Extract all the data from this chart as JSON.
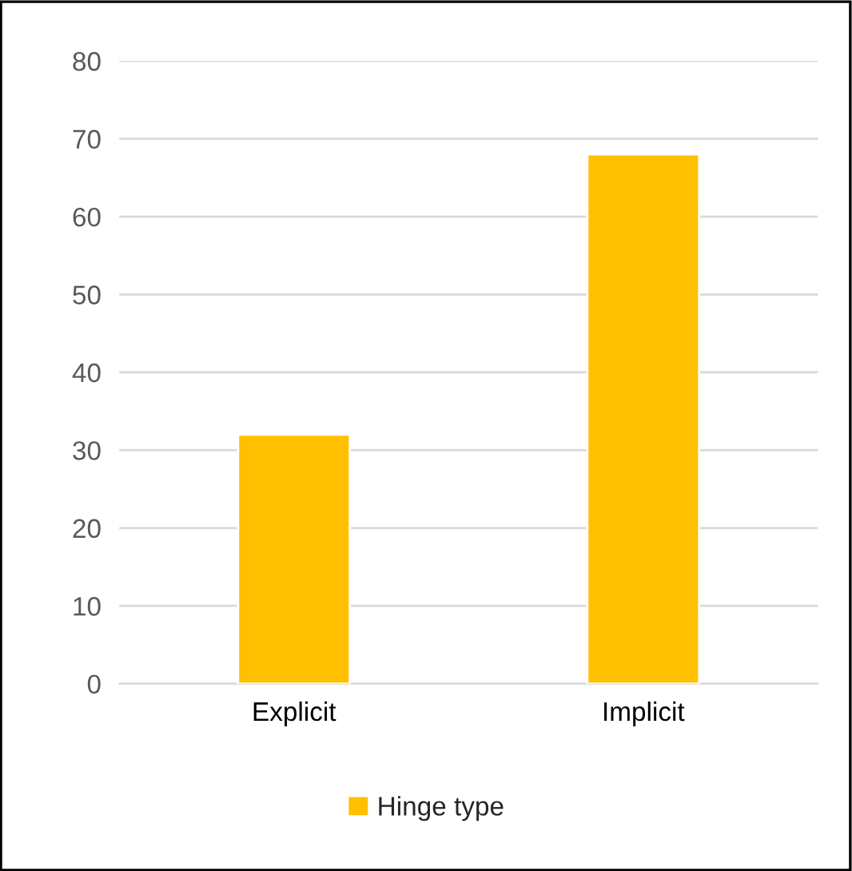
{
  "chart_data": {
    "type": "bar",
    "categories": [
      "Explicit",
      "Implicit"
    ],
    "series": [
      {
        "name": "Hinge type",
        "color": "#ffc000",
        "values": [
          32,
          68
        ]
      }
    ],
    "ylim": [
      0,
      80
    ],
    "yticks": [
      0,
      10,
      20,
      30,
      40,
      50,
      60,
      70,
      80
    ],
    "grid": "y",
    "legend": "bottom"
  }
}
